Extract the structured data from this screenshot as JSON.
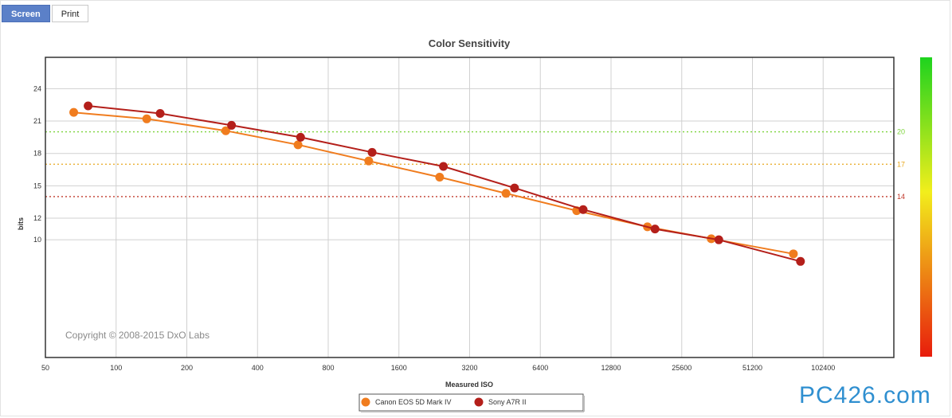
{
  "tabs": [
    {
      "label": "Screen",
      "active": true
    },
    {
      "label": "Print",
      "active": false
    }
  ],
  "watermark": "PC426.com",
  "chart_data": {
    "type": "line",
    "title": "Color Sensitivity",
    "xlabel": "Measured ISO",
    "ylabel": "bits",
    "x_scale": "log2",
    "xlim": [
      50,
      204800
    ],
    "x_ticks": [
      50,
      100,
      200,
      400,
      800,
      1600,
      3200,
      6400,
      12800,
      25600,
      51200,
      102400
    ],
    "y_ticks": [
      10,
      12,
      15,
      18,
      21,
      24
    ],
    "ylim": [
      -0.9,
      26.9
    ],
    "grid": true,
    "legend_position": "bottom-center",
    "copyright": "Copyright © 2008-2015 DxO Labs",
    "reference_lines": [
      {
        "value": 20,
        "label": "20",
        "color": "#7dd43c"
      },
      {
        "value": 17,
        "label": "17",
        "color": "#e8a81e"
      },
      {
        "value": 14,
        "label": "14",
        "color": "#c0392b"
      }
    ],
    "colorbar": {
      "top_color": "#1ed31e",
      "mid_color": "#f2ee1c",
      "bottom_color": "#e81c0c"
    },
    "series": [
      {
        "name": "Canon EOS 5D Mark IV",
        "color": "#f07c1e",
        "x": [
          66,
          135,
          293,
          595,
          1190,
          2385,
          4570,
          9140,
          18290,
          34180,
          76500
        ],
        "y": [
          21.8,
          21.2,
          20.1,
          18.8,
          17.3,
          15.8,
          14.3,
          12.7,
          11.2,
          10.1,
          8.7
        ]
      },
      {
        "name": "Sony A7R II",
        "color": "#b41f1a",
        "x": [
          76,
          154,
          310,
          610,
          1230,
          2475,
          4970,
          9740,
          19700,
          36820,
          82000
        ],
        "y": [
          22.4,
          21.7,
          20.6,
          19.5,
          18.1,
          16.8,
          14.8,
          12.8,
          11.0,
          10.0,
          8.0
        ]
      }
    ]
  }
}
